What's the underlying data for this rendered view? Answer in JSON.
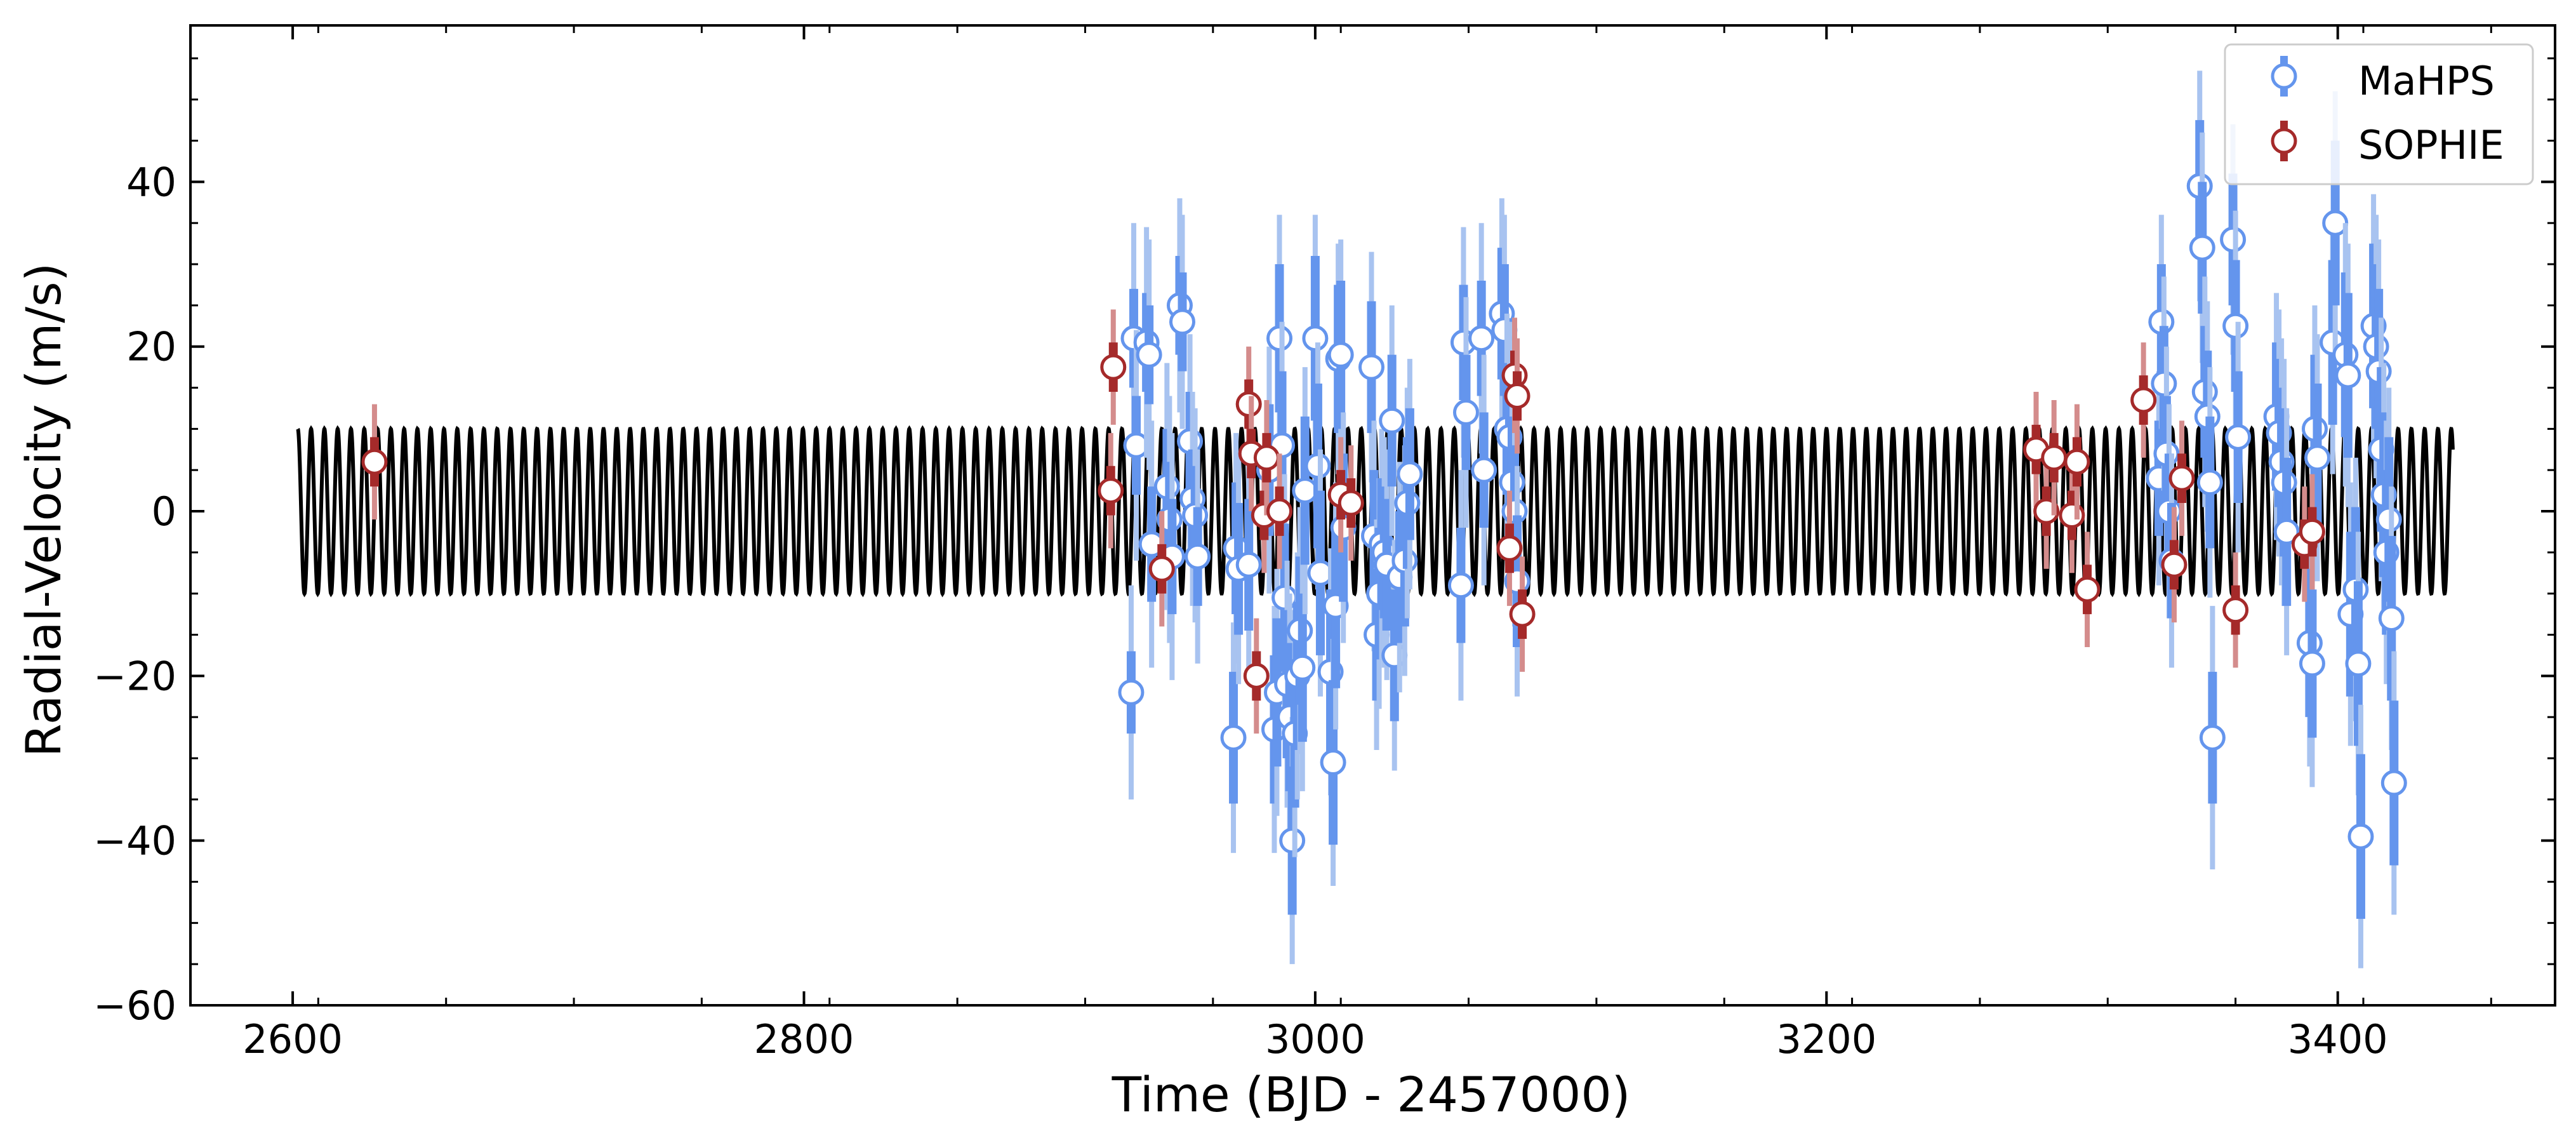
{
  "chart_data": {
    "type": "scatter",
    "title": "",
    "xlabel": "Time (BJD - 2457000)",
    "ylabel": "Radial-Velocity (m/s)",
    "xlim": [
      2560,
      3485
    ],
    "ylim": [
      -60,
      59
    ],
    "xticks": [
      2600,
      2800,
      3000,
      3200,
      3400
    ],
    "xtick_labels": [
      "2600",
      "2800",
      "3000",
      "3200",
      "3400"
    ],
    "yticks": [
      -60,
      -40,
      -20,
      0,
      20,
      40
    ],
    "ytick_labels": [
      "−60",
      "−40",
      "−20",
      "0",
      "20",
      "40"
    ],
    "grid": false,
    "legend_position": "top-right",
    "model": {
      "color": "#000000",
      "x_start": 2602,
      "x_end": 3445,
      "amplitude": 10,
      "period": 5.2,
      "phase_offset_deg": 90,
      "offset": 0
    },
    "series": [
      {
        "name": "MaHPS",
        "marker_fill": "#ffffff",
        "color": "#6495ED",
        "color_light": "#A8C3F0",
        "points": [
          {
            "x": 2928,
            "y": -22,
            "err_in": 5,
            "err_out": 13
          },
          {
            "x": 2929,
            "y": 21,
            "err_in": 6,
            "err_out": 14
          },
          {
            "x": 2930,
            "y": 8,
            "err_in": 6,
            "err_out": 14
          },
          {
            "x": 2934,
            "y": 20.5,
            "err_in": 6,
            "err_out": 14
          },
          {
            "x": 2935,
            "y": 19,
            "err_in": 6,
            "err_out": 14
          },
          {
            "x": 2936,
            "y": -4,
            "err_in": 7,
            "err_out": 15
          },
          {
            "x": 2942,
            "y": 3,
            "err_in": 7,
            "err_out": 15
          },
          {
            "x": 2943,
            "y": -1,
            "err_in": 7,
            "err_out": 15
          },
          {
            "x": 2944,
            "y": -5.5,
            "err_in": 7,
            "err_out": 15
          },
          {
            "x": 2947,
            "y": 25,
            "err_in": 6,
            "err_out": 13
          },
          {
            "x": 2948,
            "y": 23,
            "err_in": 6,
            "err_out": 13
          },
          {
            "x": 2951,
            "y": 8.5,
            "err_in": 6,
            "err_out": 13
          },
          {
            "x": 2952,
            "y": 1.5,
            "err_in": 6,
            "err_out": 13
          },
          {
            "x": 2953,
            "y": -0.5,
            "err_in": 6,
            "err_out": 13
          },
          {
            "x": 2954,
            "y": -5.5,
            "err_in": 6,
            "err_out": 13
          },
          {
            "x": 2968,
            "y": -27.5,
            "err_in": 8,
            "err_out": 14
          },
          {
            "x": 2969,
            "y": -4.5,
            "err_in": 8,
            "err_out": 14
          },
          {
            "x": 2970,
            "y": -7,
            "err_in": 8,
            "err_out": 14
          },
          {
            "x": 2974,
            "y": -6.5,
            "err_in": 8,
            "err_out": 14
          },
          {
            "x": 2982,
            "y": 5,
            "err_in": 8,
            "err_out": 15
          },
          {
            "x": 2984,
            "y": -26.5,
            "err_in": 9,
            "err_out": 15
          },
          {
            "x": 2985,
            "y": -22,
            "err_in": 9,
            "err_out": 15
          },
          {
            "x": 2986,
            "y": 21,
            "err_in": 9,
            "err_out": 15
          },
          {
            "x": 2987,
            "y": 8,
            "err_in": 9,
            "err_out": 15
          },
          {
            "x": 2988,
            "y": -10.5,
            "err_in": 9,
            "err_out": 15
          },
          {
            "x": 2989,
            "y": -21,
            "err_in": 9,
            "err_out": 15
          },
          {
            "x": 2990,
            "y": -25,
            "err_in": 9,
            "err_out": 15
          },
          {
            "x": 2991,
            "y": -40,
            "err_in": 9,
            "err_out": 15
          },
          {
            "x": 2992,
            "y": -27,
            "err_in": 9,
            "err_out": 15
          },
          {
            "x": 2993,
            "y": -20,
            "err_in": 9,
            "err_out": 15
          },
          {
            "x": 2994,
            "y": -14.5,
            "err_in": 9,
            "err_out": 15
          },
          {
            "x": 2995,
            "y": -19,
            "err_in": 9,
            "err_out": 15
          },
          {
            "x": 2996,
            "y": 2.5,
            "err_in": 9,
            "err_out": 15
          },
          {
            "x": 3000,
            "y": 21,
            "err_in": 10,
            "err_out": 15
          },
          {
            "x": 3001,
            "y": 5.5,
            "err_in": 10,
            "err_out": 15
          },
          {
            "x": 3002,
            "y": -7.5,
            "err_in": 10,
            "err_out": 15
          },
          {
            "x": 3006,
            "y": -19.5,
            "err_in": 10,
            "err_out": 15
          },
          {
            "x": 3007,
            "y": -30.5,
            "err_in": 10,
            "err_out": 15
          },
          {
            "x": 3008,
            "y": -11.5,
            "err_in": 10,
            "err_out": 15
          },
          {
            "x": 3009,
            "y": 18.5,
            "err_in": 9,
            "err_out": 14
          },
          {
            "x": 3010,
            "y": 19,
            "err_in": 9,
            "err_out": 14
          },
          {
            "x": 3011,
            "y": -2,
            "err_in": 9,
            "err_out": 14
          },
          {
            "x": 3022,
            "y": 17.5,
            "err_in": 8,
            "err_out": 14
          },
          {
            "x": 3023,
            "y": -3,
            "err_in": 8,
            "err_out": 14
          },
          {
            "x": 3024,
            "y": -15,
            "err_in": 8,
            "err_out": 14
          },
          {
            "x": 3025,
            "y": -10,
            "err_in": 8,
            "err_out": 14
          },
          {
            "x": 3026,
            "y": -4,
            "err_in": 8,
            "err_out": 14
          },
          {
            "x": 3027,
            "y": -5,
            "err_in": 8,
            "err_out": 14
          },
          {
            "x": 3028,
            "y": -6.5,
            "err_in": 8,
            "err_out": 14
          },
          {
            "x": 3030,
            "y": 11,
            "err_in": 8,
            "err_out": 14
          },
          {
            "x": 3031,
            "y": -17.5,
            "err_in": 8,
            "err_out": 14
          },
          {
            "x": 3033,
            "y": -8,
            "err_in": 8,
            "err_out": 14
          },
          {
            "x": 3035,
            "y": -6,
            "err_in": 8,
            "err_out": 14
          },
          {
            "x": 3036,
            "y": 1,
            "err_in": 8,
            "err_out": 14
          },
          {
            "x": 3037,
            "y": 4.5,
            "err_in": 8,
            "err_out": 14
          },
          {
            "x": 3057,
            "y": -9,
            "err_in": 7,
            "err_out": 14
          },
          {
            "x": 3058,
            "y": 20.5,
            "err_in": 7,
            "err_out": 14
          },
          {
            "x": 3059,
            "y": 12,
            "err_in": 7,
            "err_out": 14
          },
          {
            "x": 3065,
            "y": 21,
            "err_in": 7,
            "err_out": 14
          },
          {
            "x": 3066,
            "y": 5,
            "err_in": 7,
            "err_out": 14
          },
          {
            "x": 3073,
            "y": 24,
            "err_in": 8,
            "err_out": 14
          },
          {
            "x": 3074,
            "y": 22,
            "err_in": 8,
            "err_out": 14
          },
          {
            "x": 3075,
            "y": 10,
            "err_in": 8,
            "err_out": 14
          },
          {
            "x": 3076,
            "y": 9,
            "err_in": 8,
            "err_out": 14
          },
          {
            "x": 3077,
            "y": 3.5,
            "err_in": 8,
            "err_out": 14
          },
          {
            "x": 3078,
            "y": 0,
            "err_in": 8,
            "err_out": 14
          },
          {
            "x": 3079,
            "y": -8.5,
            "err_in": 8,
            "err_out": 14
          },
          {
            "x": 3330,
            "y": 4,
            "err_in": 7,
            "err_out": 13
          },
          {
            "x": 3331,
            "y": 23,
            "err_in": 7,
            "err_out": 13
          },
          {
            "x": 3332,
            "y": 15.5,
            "err_in": 7,
            "err_out": 13
          },
          {
            "x": 3333,
            "y": 7,
            "err_in": 7,
            "err_out": 13
          },
          {
            "x": 3334,
            "y": 0,
            "err_in": 7,
            "err_out": 13
          },
          {
            "x": 3335,
            "y": -6,
            "err_in": 7,
            "err_out": 13
          },
          {
            "x": 3346,
            "y": 39.5,
            "err_in": 8,
            "err_out": 14
          },
          {
            "x": 3347,
            "y": 32,
            "err_in": 8,
            "err_out": 14
          },
          {
            "x": 3348,
            "y": 14.5,
            "err_in": 8,
            "err_out": 14
          },
          {
            "x": 3349,
            "y": 11.5,
            "err_in": 8,
            "err_out": 14
          },
          {
            "x": 3350,
            "y": 3.5,
            "err_in": 8,
            "err_out": 14
          },
          {
            "x": 3351,
            "y": -27.5,
            "err_in": 8,
            "err_out": 16
          },
          {
            "x": 3359,
            "y": 33,
            "err_in": 8,
            "err_out": 14
          },
          {
            "x": 3360,
            "y": 22.5,
            "err_in": 8,
            "err_out": 14
          },
          {
            "x": 3361,
            "y": 9,
            "err_in": 8,
            "err_out": 14
          },
          {
            "x": 3376,
            "y": 11.5,
            "err_in": 9,
            "err_out": 15
          },
          {
            "x": 3377,
            "y": 9.5,
            "err_in": 9,
            "err_out": 15
          },
          {
            "x": 3378,
            "y": 6,
            "err_in": 9,
            "err_out": 15
          },
          {
            "x": 3379,
            "y": 3.5,
            "err_in": 9,
            "err_out": 15
          },
          {
            "x": 3380,
            "y": -2.5,
            "err_in": 9,
            "err_out": 15
          },
          {
            "x": 3389,
            "y": -16,
            "err_in": 9,
            "err_out": 15
          },
          {
            "x": 3390,
            "y": -18.5,
            "err_in": 9,
            "err_out": 15
          },
          {
            "x": 3391,
            "y": 10,
            "err_in": 9,
            "err_out": 15
          },
          {
            "x": 3392,
            "y": 6.5,
            "err_in": 9,
            "err_out": 15
          },
          {
            "x": 3398,
            "y": 20.5,
            "err_in": 10,
            "err_out": 16
          },
          {
            "x": 3399,
            "y": 35,
            "err_in": 10,
            "err_out": 16
          },
          {
            "x": 3403,
            "y": 19,
            "err_in": 10,
            "err_out": 16
          },
          {
            "x": 3404,
            "y": 16.5,
            "err_in": 10,
            "err_out": 16
          },
          {
            "x": 3405,
            "y": -12.5,
            "err_in": 10,
            "err_out": 16
          },
          {
            "x": 3407,
            "y": -9.5,
            "err_in": 10,
            "err_out": 16
          },
          {
            "x": 3408,
            "y": -18.5,
            "err_in": 10,
            "err_out": 16
          },
          {
            "x": 3409,
            "y": -39.5,
            "err_in": 10,
            "err_out": 16
          },
          {
            "x": 3414,
            "y": 22.5,
            "err_in": 10,
            "err_out": 16
          },
          {
            "x": 3415,
            "y": 20,
            "err_in": 10,
            "err_out": 16
          },
          {
            "x": 3416,
            "y": 17,
            "err_in": 10,
            "err_out": 16
          },
          {
            "x": 3417,
            "y": 7.5,
            "err_in": 10,
            "err_out": 16
          },
          {
            "x": 3418,
            "y": 2,
            "err_in": 10,
            "err_out": 16
          },
          {
            "x": 3419,
            "y": -5,
            "err_in": 10,
            "err_out": 16
          },
          {
            "x": 3420,
            "y": -1,
            "err_in": 10,
            "err_out": 16
          },
          {
            "x": 3421,
            "y": -13,
            "err_in": 10,
            "err_out": 16
          },
          {
            "x": 3422,
            "y": -33,
            "err_in": 10,
            "err_out": 16
          }
        ]
      },
      {
        "name": "SOPHIE",
        "marker_fill": "#ffffff",
        "color": "#A52A2A",
        "color_light": "#D48C8C",
        "points": [
          {
            "x": 2632,
            "y": 6,
            "err_in": 3,
            "err_out": 7
          },
          {
            "x": 2921,
            "y": 17.5,
            "err_in": 3,
            "err_out": 7
          },
          {
            "x": 2920,
            "y": 2.5,
            "err_in": 3,
            "err_out": 7
          },
          {
            "x": 2940,
            "y": -7,
            "err_in": 3,
            "err_out": 7
          },
          {
            "x": 2974,
            "y": 13,
            "err_in": 3,
            "err_out": 7
          },
          {
            "x": 2975,
            "y": 7,
            "err_in": 3,
            "err_out": 7
          },
          {
            "x": 2977,
            "y": -20,
            "err_in": 3,
            "err_out": 7
          },
          {
            "x": 2980,
            "y": -0.5,
            "err_in": 3,
            "err_out": 7
          },
          {
            "x": 2981,
            "y": 6.5,
            "err_in": 3,
            "err_out": 7
          },
          {
            "x": 2986,
            "y": 0,
            "err_in": 3,
            "err_out": 7
          },
          {
            "x": 3010,
            "y": 2,
            "err_in": 3,
            "err_out": 7
          },
          {
            "x": 3014,
            "y": 1,
            "err_in": 3,
            "err_out": 7
          },
          {
            "x": 3076,
            "y": -4.5,
            "err_in": 3,
            "err_out": 7
          },
          {
            "x": 3078,
            "y": 16.5,
            "err_in": 3,
            "err_out": 7
          },
          {
            "x": 3079,
            "y": 14,
            "err_in": 3,
            "err_out": 7
          },
          {
            "x": 3081,
            "y": -12.5,
            "err_in": 3,
            "err_out": 7
          },
          {
            "x": 3282,
            "y": 7.5,
            "err_in": 3,
            "err_out": 7
          },
          {
            "x": 3286,
            "y": 0,
            "err_in": 3,
            "err_out": 7
          },
          {
            "x": 3289,
            "y": 6.5,
            "err_in": 3,
            "err_out": 7
          },
          {
            "x": 3296,
            "y": -0.5,
            "err_in": 3,
            "err_out": 7
          },
          {
            "x": 3298,
            "y": 6,
            "err_in": 3,
            "err_out": 7
          },
          {
            "x": 3302,
            "y": -9.5,
            "err_in": 3,
            "err_out": 7
          },
          {
            "x": 3324,
            "y": 13.5,
            "err_in": 3,
            "err_out": 7
          },
          {
            "x": 3336,
            "y": -6.5,
            "err_in": 3,
            "err_out": 7
          },
          {
            "x": 3339,
            "y": 4,
            "err_in": 3,
            "err_out": 7
          },
          {
            "x": 3360,
            "y": -12,
            "err_in": 3,
            "err_out": 7
          },
          {
            "x": 3387,
            "y": -4,
            "err_in": 3,
            "err_out": 7
          },
          {
            "x": 3390,
            "y": -2.5,
            "err_in": 3,
            "err_out": 7
          }
        ]
      }
    ]
  }
}
